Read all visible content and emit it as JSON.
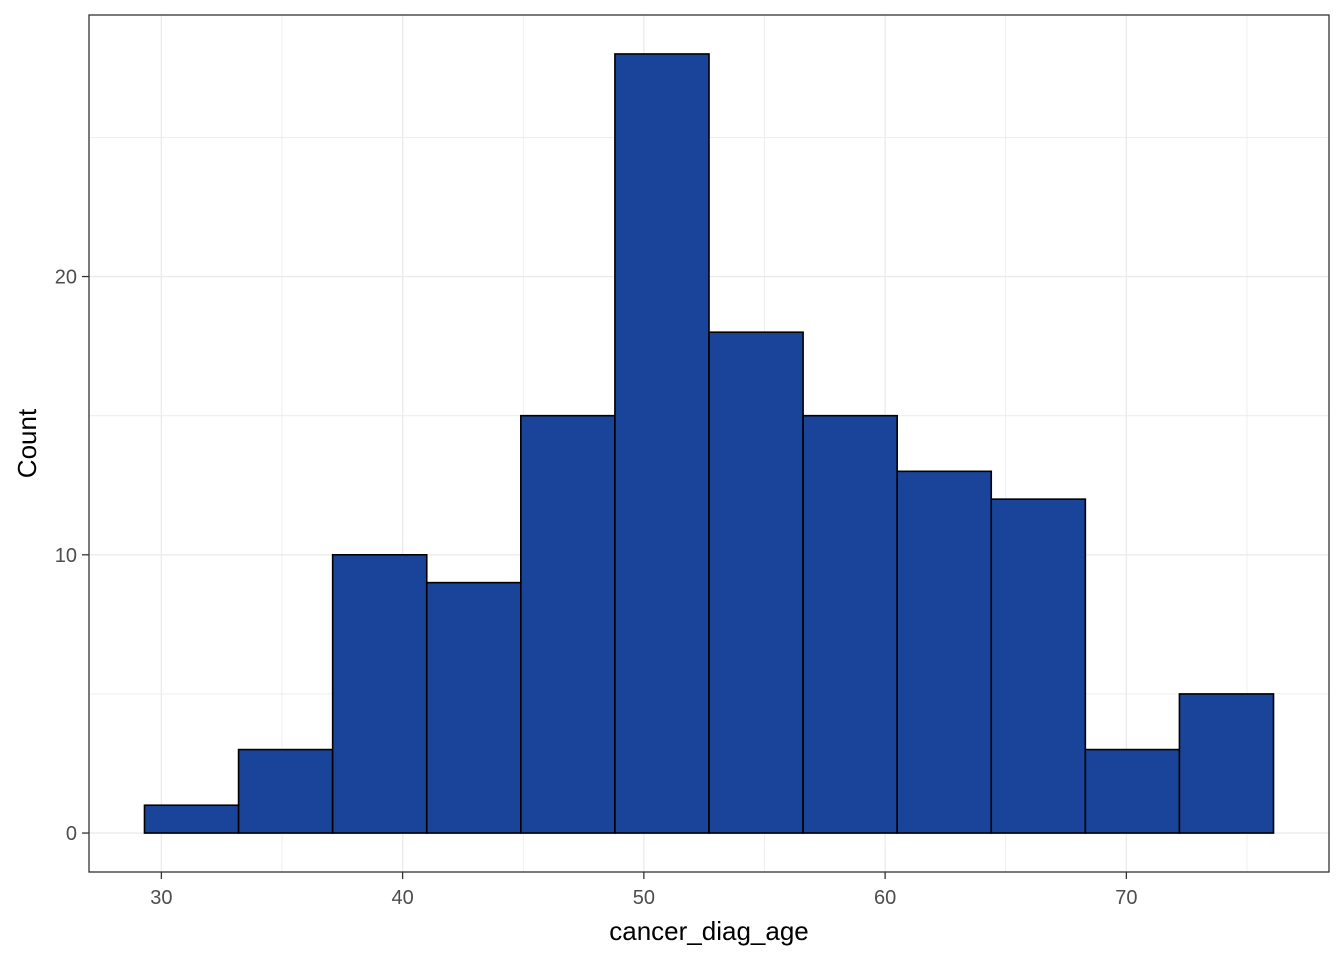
{
  "chart_data": {
    "type": "bar",
    "subtype": "histogram",
    "xlabel": "cancer_diag_age",
    "ylabel": "Count",
    "bin_edges": [
      29.3,
      33.2,
      37.1,
      41.0,
      44.9,
      48.8,
      52.7,
      56.6,
      60.5,
      64.4,
      68.3,
      72.2,
      76.1
    ],
    "counts": [
      1,
      3,
      10,
      9,
      15,
      28,
      18,
      15,
      13,
      12,
      3,
      5
    ],
    "xlim": [
      27.0,
      78.4
    ],
    "ylim": [
      -1.4,
      29.4
    ],
    "x_ticks": [
      30,
      40,
      50,
      60,
      70
    ],
    "x_tick_labels": [
      "30",
      "40",
      "50",
      "60",
      "70"
    ],
    "y_ticks": [
      0,
      10,
      20
    ],
    "y_tick_labels": [
      "0",
      "10",
      "20"
    ],
    "x_minor_grid": [
      35,
      45,
      55,
      65,
      75
    ],
    "y_minor_grid": [
      5,
      15,
      25
    ],
    "grid": true,
    "legend": "none",
    "colors": {
      "bar_fill": "#1a4499",
      "bar_stroke": "#000000",
      "grid": "#ebebeb",
      "panel_border": "#333333",
      "background": "#ffffff"
    }
  }
}
